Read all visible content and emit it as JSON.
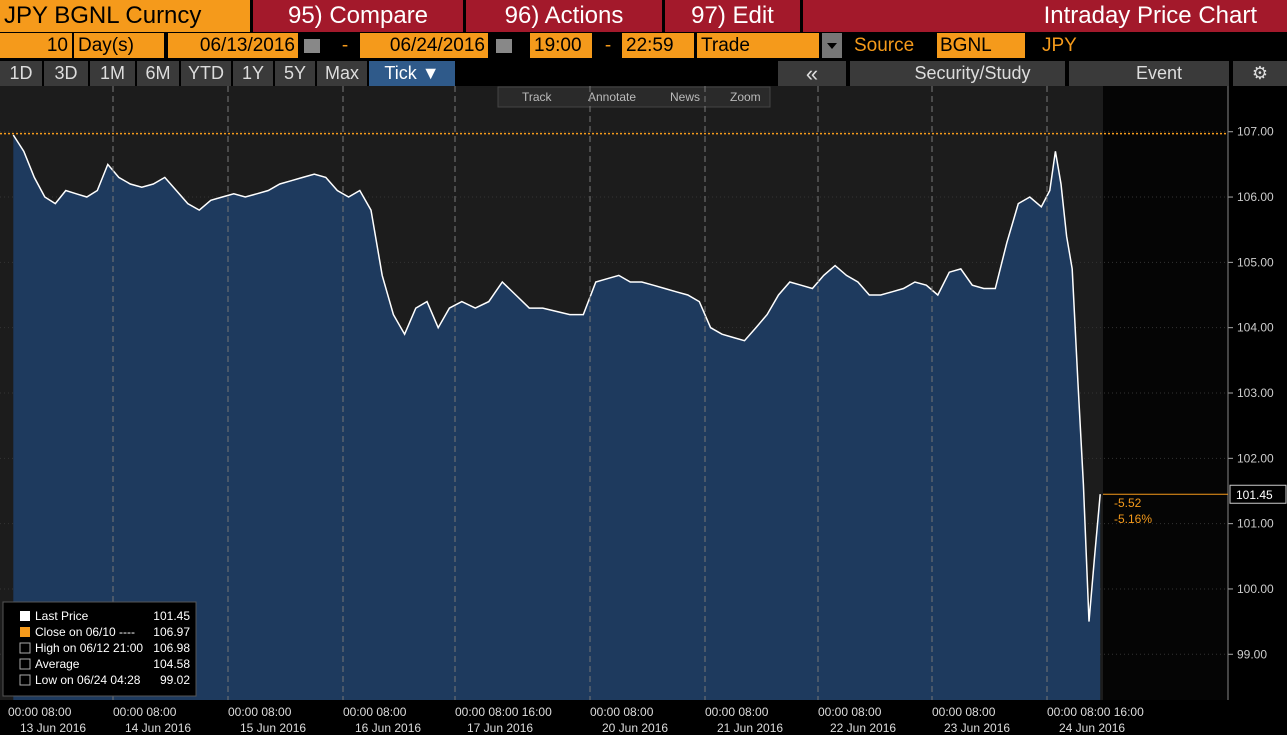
{
  "header": {
    "security": "JPY BGNL Curncy",
    "compare": "95) Compare",
    "actions": "96) Actions",
    "edit": "97) Edit",
    "title": "Intraday Price Chart"
  },
  "settings": {
    "period": "10",
    "unit": "Day(s)",
    "start_date": "06/13/2016",
    "date_sep": "-",
    "end_date": "06/24/2016",
    "start_time": "19:00",
    "time_sep": "-",
    "end_time": "22:59",
    "event": "Trade",
    "source_label": "Source",
    "source": "BGNL",
    "currency": "JPY"
  },
  "ranges": [
    "1D",
    "3D",
    "1M",
    "6M",
    "YTD",
    "1Y",
    "5Y",
    "Max",
    "Tick ▼"
  ],
  "tools": {
    "security_study": "Security/Study",
    "event": "Event"
  },
  "chart_tools": [
    "Track",
    "Annotate",
    "News",
    "Zoom"
  ],
  "chart_data": {
    "type": "area",
    "color": "#1e3a5e",
    "line_color": "#ffffff",
    "values": [
      106.95,
      106.7,
      106.3,
      106.0,
      105.9,
      106.1,
      106.05,
      106.0,
      106.1,
      106.5,
      106.3,
      106.2,
      106.15,
      106.2,
      106.3,
      106.1,
      105.9,
      105.8,
      105.95,
      106.0,
      106.05,
      106.0,
      106.05,
      106.1,
      106.2,
      106.25,
      106.3,
      106.35,
      106.3,
      106.1,
      106.0,
      106.1,
      105.8,
      104.8,
      104.2,
      103.9,
      104.3,
      104.4,
      104.0,
      104.3,
      104.4,
      104.3,
      104.4,
      104.7,
      104.5,
      104.3,
      104.3,
      104.25,
      104.2,
      104.2,
      104.7,
      104.75,
      104.8,
      104.7,
      104.7,
      104.65,
      104.6,
      104.55,
      104.5,
      104.4,
      104.0,
      103.9,
      103.85,
      103.8,
      104.0,
      104.2,
      104.5,
      104.7,
      104.65,
      104.6,
      104.8,
      104.95,
      104.8,
      104.7,
      104.5,
      104.5,
      104.55,
      104.6,
      104.7,
      104.65,
      104.5,
      104.85,
      104.9,
      104.65,
      104.6,
      104.6,
      105.3,
      105.9,
      106.0,
      105.85,
      106.1,
      106.7,
      106.2,
      105.4,
      104.9,
      103.2,
      101.6,
      99.5,
      100.5,
      101.45
    ],
    "x_labels": [
      {
        "time": "00:00 08:00",
        "date": "13 Jun 2016"
      },
      {
        "time": "00:00 08:00",
        "date": "14 Jun 2016"
      },
      {
        "time": "00:00 08:00",
        "date": "15 Jun 2016"
      },
      {
        "time": "00:00 08:00",
        "date": "16 Jun 2016"
      },
      {
        "time": "00:00 08:00 16:00",
        "date": "17 Jun 2016"
      },
      {
        "time": "00:00 08:00",
        "date": "20 Jun 2016"
      },
      {
        "time": "00:00 08:00",
        "date": "21 Jun 2016"
      },
      {
        "time": "00:00 08:00",
        "date": "22 Jun 2016"
      },
      {
        "time": "00:00 08:00",
        "date": "23 Jun 2016"
      },
      {
        "time": "00:00 08:00 16:00",
        "date": "24 Jun 2016"
      }
    ],
    "ylim": [
      98.3,
      107.7
    ],
    "yticks": [
      {
        "value": 99,
        "label": "99.00"
      },
      {
        "value": 100,
        "label": "100.00"
      },
      {
        "value": 101,
        "label": "101.00"
      },
      {
        "value": 102,
        "label": "102.00"
      },
      {
        "value": 103,
        "label": "103.00"
      },
      {
        "value": 104,
        "label": "104.00"
      },
      {
        "value": 105,
        "label": "105.00"
      },
      {
        "value": 106,
        "label": "106.00"
      },
      {
        "value": 107,
        "label": "107.00"
      }
    ],
    "legend": [
      {
        "name": "Last Price",
        "value": 101.45
      },
      {
        "name": "Close on 06/10 ----",
        "value": 106.97
      },
      {
        "name": "High on 06/12 21:00",
        "value": 106.98
      },
      {
        "name": "Average",
        "value": 104.58
      },
      {
        "name": "Low on 06/24 04:28",
        "value": 99.02
      }
    ],
    "annotations": [
      "-5.52",
      "-5.16%"
    ]
  }
}
